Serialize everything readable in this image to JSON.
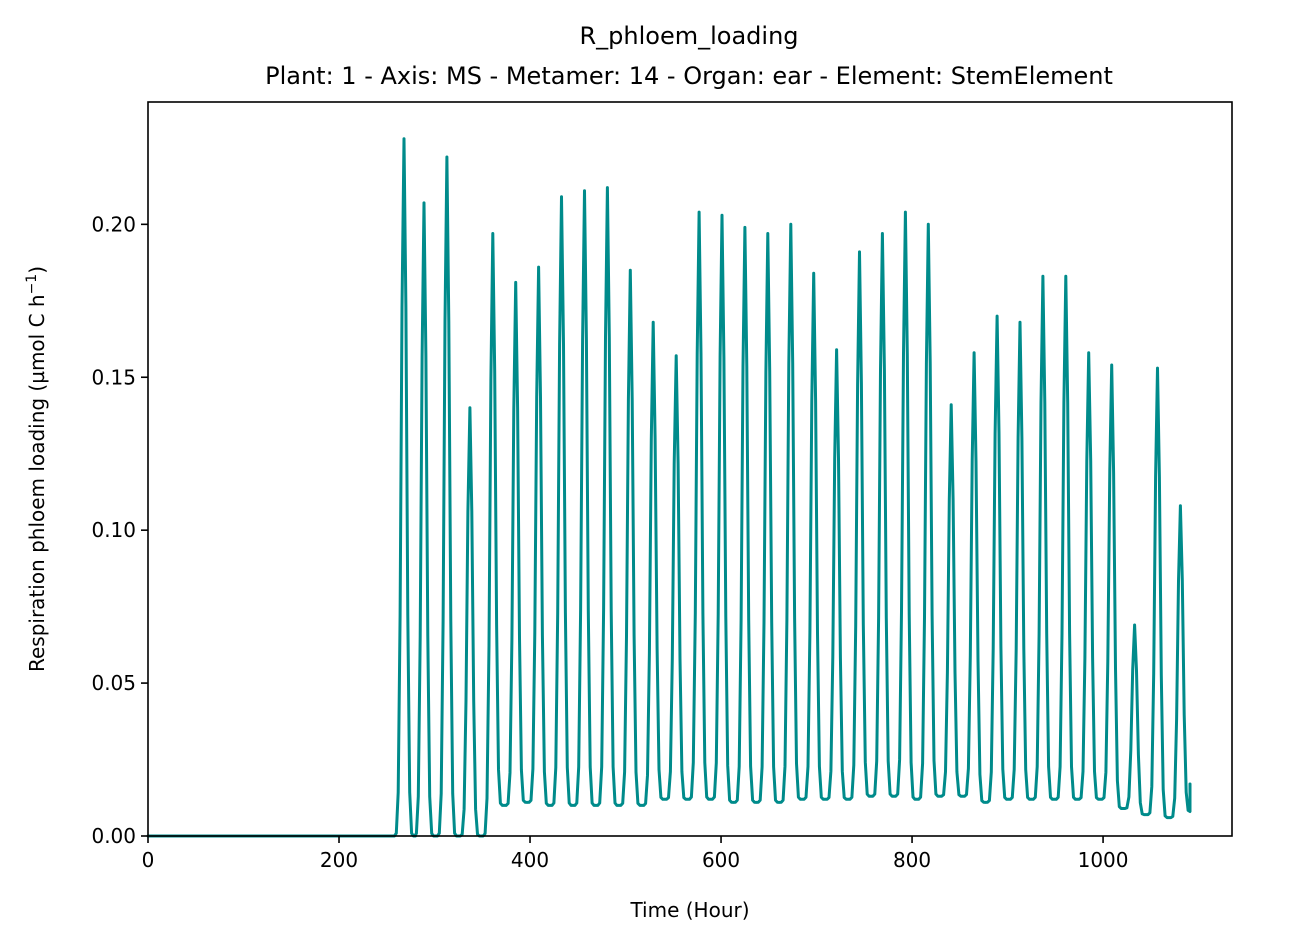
{
  "chart_data": {
    "type": "line",
    "title": "R_phloem_loading",
    "subtitle": "Plant: 1 - Axis: MS - Metamer: 14 - Organ: ear - Element: StemElement",
    "xlabel": "Time (Hour)",
    "ylabel_main": "Respiration phloem loading (µmol C h",
    "ylabel_exp": "−1",
    "ylabel_close": ")",
    "xlim": [
      0,
      1135
    ],
    "ylim": [
      0,
      0.24
    ],
    "x_ticks": [
      0,
      200,
      400,
      600,
      800,
      1000
    ],
    "x_tick_labels": [
      "0",
      "200",
      "400",
      "600",
      "800",
      "1000"
    ],
    "y_ticks": [
      0,
      0.05,
      0.1,
      0.15,
      0.2
    ],
    "y_tick_labels": [
      "0.00",
      "0.05",
      "0.10",
      "0.15",
      "0.20"
    ],
    "grid": false,
    "series": [
      {
        "color": "#008b8b",
        "x_start": 0,
        "x_end": 1091,
        "flat_until": 255,
        "period": 24,
        "end_value": 0.017,
        "cycles": [
          {
            "x": 268,
            "peak": 0.228,
            "trough": 0.0
          },
          {
            "x": 289,
            "peak": 0.207,
            "trough": 0.0
          },
          {
            "x": 313,
            "peak": 0.222,
            "trough": 0.0
          },
          {
            "x": 337,
            "peak": 0.14,
            "trough": 0.0
          },
          {
            "x": 361,
            "peak": 0.197,
            "trough": 0.01
          },
          {
            "x": 385,
            "peak": 0.181,
            "trough": 0.011
          },
          {
            "x": 409,
            "peak": 0.186,
            "trough": 0.01
          },
          {
            "x": 433,
            "peak": 0.209,
            "trough": 0.01
          },
          {
            "x": 457,
            "peak": 0.211,
            "trough": 0.01
          },
          {
            "x": 481,
            "peak": 0.212,
            "trough": 0.01
          },
          {
            "x": 505,
            "peak": 0.185,
            "trough": 0.01
          },
          {
            "x": 529,
            "peak": 0.168,
            "trough": 0.012
          },
          {
            "x": 553,
            "peak": 0.157,
            "trough": 0.012
          },
          {
            "x": 577,
            "peak": 0.204,
            "trough": 0.012
          },
          {
            "x": 601,
            "peak": 0.203,
            "trough": 0.011
          },
          {
            "x": 625,
            "peak": 0.199,
            "trough": 0.011
          },
          {
            "x": 649,
            "peak": 0.197,
            "trough": 0.011
          },
          {
            "x": 673,
            "peak": 0.2,
            "trough": 0.012
          },
          {
            "x": 697,
            "peak": 0.184,
            "trough": 0.012
          },
          {
            "x": 721,
            "peak": 0.159,
            "trough": 0.012
          },
          {
            "x": 745,
            "peak": 0.191,
            "trough": 0.013
          },
          {
            "x": 769,
            "peak": 0.197,
            "trough": 0.013
          },
          {
            "x": 793,
            "peak": 0.204,
            "trough": 0.012
          },
          {
            "x": 817,
            "peak": 0.2,
            "trough": 0.013
          },
          {
            "x": 841,
            "peak": 0.141,
            "trough": 0.013
          },
          {
            "x": 865,
            "peak": 0.158,
            "trough": 0.011
          },
          {
            "x": 889,
            "peak": 0.17,
            "trough": 0.012
          },
          {
            "x": 913,
            "peak": 0.168,
            "trough": 0.012
          },
          {
            "x": 937,
            "peak": 0.183,
            "trough": 0.012
          },
          {
            "x": 961,
            "peak": 0.183,
            "trough": 0.012
          },
          {
            "x": 985,
            "peak": 0.158,
            "trough": 0.012
          },
          {
            "x": 1009,
            "peak": 0.154,
            "trough": 0.009
          },
          {
            "x": 1033,
            "peak": 0.069,
            "trough": 0.007
          },
          {
            "x": 1057,
            "peak": 0.153,
            "trough": 0.006
          },
          {
            "x": 1081,
            "peak": 0.108,
            "trough": 0.008
          }
        ]
      }
    ]
  }
}
